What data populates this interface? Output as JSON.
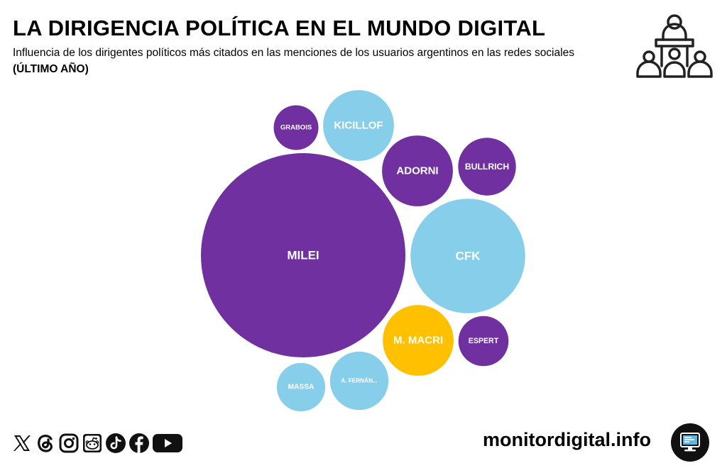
{
  "header": {
    "title": "LA DIRIGENCIA POLÍTICA EN EL MUNDO DIGITAL",
    "subtitle": "Influencia de los dirigentes políticos más citados en las menciones de los usuarios argentinos en las redes sociales",
    "period": "(ÚLTIMO AÑO)",
    "icon": "audience-speaker-icon"
  },
  "colors": {
    "purple": "#7030a0",
    "lightblue": "#87ceeb",
    "yellow": "#ffc000"
  },
  "chart_data": {
    "type": "bubble",
    "title": "LA DIRIGENCIA POLÍTICA EN EL MUNDO DIGITAL",
    "subtitle": "Influencia de los dirigentes políticos más citados en las menciones de los usuarios argentinos en las redes sociales",
    "value_note": "Relative influence estimated from bubble area (MILEI = 100)",
    "bubbles": [
      {
        "label": "MILEI",
        "value": 100,
        "color": "purple"
      },
      {
        "label": "CFK",
        "value": 31.5,
        "color": "lightblue"
      },
      {
        "label": "KICILLOF",
        "value": 12,
        "color": "lightblue"
      },
      {
        "label": "ADORNI",
        "value": 12,
        "color": "purple"
      },
      {
        "label": "M. MACRI",
        "value": 12,
        "color": "yellow"
      },
      {
        "label": "A. FERNÁN...",
        "value": 8.2,
        "color": "lightblue"
      },
      {
        "label": "BULLRICH",
        "value": 8,
        "color": "purple"
      },
      {
        "label": "ESPERT",
        "value": 6,
        "color": "purple"
      },
      {
        "label": "MASSA",
        "value": 5.6,
        "color": "lightblue"
      },
      {
        "label": "GRABOIS",
        "value": 4.8,
        "color": "purple"
      }
    ]
  },
  "footer": {
    "site": "monitordigital.info",
    "social_icons": [
      "x-icon",
      "threads-icon",
      "instagram-icon",
      "reddit-icon",
      "tiktok-icon",
      "facebook-icon",
      "youtube-icon"
    ],
    "badge_icon": "monitor-icon"
  }
}
